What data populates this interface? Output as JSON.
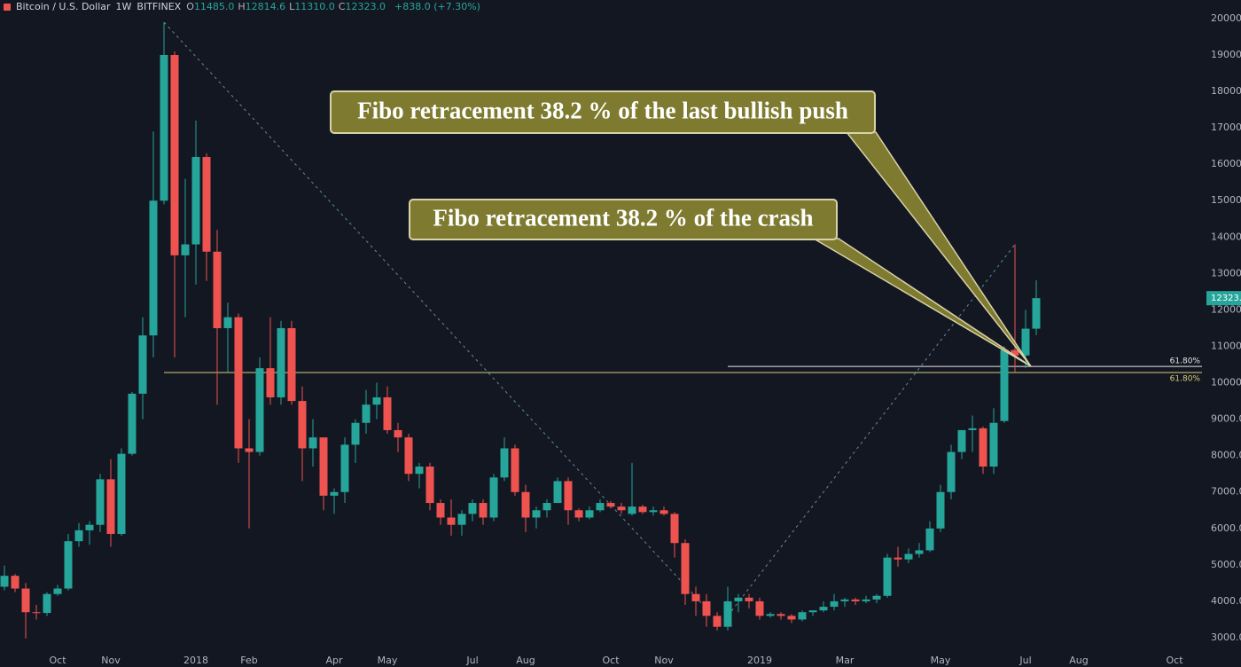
{
  "header": {
    "symbol": "Bitcoin / U.S. Dollar",
    "interval": "1W",
    "exchange": "BITFINEX",
    "ohlc": [
      {
        "label": "O",
        "value": "11485.0"
      },
      {
        "label": "H",
        "value": "12814.6"
      },
      {
        "label": "L",
        "value": "11310.0"
      },
      {
        "label": "C",
        "value": "12323.0"
      }
    ],
    "change": "+838.0 (+7.30%)"
  },
  "chart_data": {
    "type": "candlestick",
    "grid": false,
    "up_color": "#26a69a",
    "down_color": "#ef5350",
    "categories": [
      null,
      null,
      null,
      null,
      null,
      "Oct",
      null,
      null,
      null,
      null,
      "Nov",
      null,
      null,
      null,
      null,
      null,
      null,
      null,
      "2018",
      null,
      null,
      null,
      null,
      "Feb",
      null,
      null,
      null,
      null,
      null,
      null,
      null,
      "Apr",
      null,
      null,
      null,
      null,
      "May",
      null,
      null,
      null,
      null,
      null,
      null,
      null,
      "Jul",
      null,
      null,
      null,
      null,
      "Aug",
      null,
      null,
      null,
      null,
      null,
      null,
      null,
      "Oct",
      null,
      null,
      null,
      null,
      "Nov",
      null,
      null,
      null,
      null,
      null,
      null,
      null,
      null,
      "2019",
      null,
      null,
      null,
      null,
      null,
      null,
      null,
      "Mar",
      null,
      null,
      null,
      null,
      null,
      null,
      null,
      null,
      "May",
      null,
      null,
      null,
      null,
      null,
      null,
      null,
      "Jul",
      null,
      null,
      null,
      null,
      "Aug",
      null,
      null,
      null,
      null,
      null,
      null,
      null,
      null,
      "Oct",
      null
    ],
    "open": [
      4400,
      4700,
      4350,
      3700,
      3680,
      4200,
      4350,
      5650,
      5950,
      6100,
      7350,
      5850,
      8050,
      9700,
      11300,
      15000,
      19000,
      13500,
      13800,
      16200,
      13600,
      11500,
      11800,
      8200,
      8100,
      10400,
      9600,
      11500,
      9500,
      8200,
      8500,
      6900,
      7000,
      8300,
      8900,
      9400,
      9600,
      8700,
      8500,
      7500,
      7700,
      6700,
      6300,
      6100,
      6400,
      6700,
      6300,
      7400,
      8200,
      7000,
      6300,
      6500,
      6700,
      7300,
      6500,
      6300,
      6500,
      6700,
      6600,
      6400,
      6600,
      6450,
      6500,
      6400,
      5600,
      4200,
      4000,
      3600,
      3300,
      4000,
      4100,
      4000,
      3600,
      3650,
      3600,
      3500,
      3700,
      3750,
      3850,
      4000,
      4050,
      4000,
      4050,
      4150,
      5200,
      5150,
      5300,
      5400,
      6000,
      7000,
      8100,
      8700,
      8750,
      7700,
      8950,
      10900,
      10750,
      11485,
      null,
      null,
      null,
      null,
      null,
      null,
      null,
      null,
      null,
      null,
      null,
      null,
      null,
      null
    ],
    "high": [
      4980,
      4750,
      4500,
      3900,
      4250,
      4450,
      5850,
      6150,
      6200,
      7500,
      7900,
      8200,
      9750,
      11800,
      16900,
      19900,
      19100,
      15600,
      17200,
      16300,
      14200,
      12200,
      11900,
      9000,
      10700,
      11800,
      11700,
      11700,
      9900,
      9000,
      8500,
      7100,
      8500,
      9000,
      9800,
      10000,
      9900,
      8900,
      8600,
      7800,
      7800,
      6800,
      6800,
      6500,
      6800,
      6800,
      7500,
      8500,
      8300,
      7200,
      6600,
      6800,
      7400,
      7400,
      6550,
      6600,
      6800,
      6750,
      6700,
      7800,
      6650,
      6600,
      6600,
      6450,
      5700,
      4400,
      4200,
      3700,
      4400,
      4200,
      4200,
      4100,
      3700,
      3700,
      3650,
      3750,
      3750,
      4000,
      4200,
      4100,
      4100,
      4150,
      4200,
      5300,
      5500,
      5450,
      5600,
      6200,
      7200,
      8300,
      8700,
      9100,
      8800,
      9300,
      11000,
      13800,
      12000,
      12814.6,
      null,
      null,
      null,
      null,
      null,
      null,
      null,
      null,
      null,
      null,
      null,
      null,
      null,
      null
    ],
    "low": [
      4300,
      4250,
      2980,
      3500,
      3600,
      4150,
      4300,
      5500,
      5550,
      5900,
      5500,
      5800,
      8000,
      9000,
      10700,
      14900,
      10700,
      11800,
      12700,
      12800,
      9400,
      10300,
      7800,
      6000,
      8000,
      9400,
      9400,
      9400,
      7300,
      7700,
      6500,
      6400,
      6700,
      7800,
      8600,
      9000,
      8600,
      8100,
      7300,
      7100,
      6500,
      6100,
      5800,
      5800,
      6200,
      6100,
      6200,
      7300,
      6900,
      5900,
      6000,
      6300,
      6700,
      6100,
      6200,
      6250,
      6450,
      6550,
      6400,
      6350,
      6400,
      6350,
      6350,
      5200,
      3900,
      3600,
      3300,
      3200,
      3200,
      3700,
      3800,
      3500,
      3550,
      3500,
      3400,
      3450,
      3600,
      3700,
      3750,
      3850,
      3900,
      3950,
      3950,
      4100,
      4950,
      5050,
      5200,
      5350,
      5900,
      6800,
      7900,
      8100,
      7500,
      7500,
      8900,
      10300,
      10400,
      11310,
      null,
      null,
      null,
      null,
      null,
      null,
      null,
      null,
      null,
      null,
      null,
      null,
      null,
      null
    ],
    "close": [
      4700,
      4350,
      3700,
      3680,
      4200,
      4350,
      5650,
      5950,
      6100,
      7350,
      5850,
      8050,
      9700,
      11300,
      15000,
      19000,
      13500,
      13800,
      16200,
      13600,
      11500,
      11800,
      8200,
      8100,
      10400,
      9600,
      11500,
      9500,
      8200,
      8500,
      6900,
      7000,
      8300,
      8900,
      9400,
      9600,
      8700,
      8500,
      7500,
      7700,
      6700,
      6300,
      6100,
      6400,
      6700,
      6300,
      7400,
      8200,
      7000,
      6300,
      6500,
      6700,
      7300,
      6500,
      6300,
      6500,
      6700,
      6600,
      6500,
      6600,
      6450,
      6500,
      6400,
      5600,
      4200,
      4000,
      3600,
      3300,
      4000,
      4100,
      4000,
      3600,
      3650,
      3600,
      3500,
      3700,
      3750,
      3850,
      4000,
      4050,
      4000,
      4050,
      4150,
      5200,
      5150,
      5300,
      5400,
      6000,
      7000,
      8100,
      8700,
      8750,
      7700,
      8900,
      10900,
      10750,
      11485,
      12323,
      null,
      null,
      null,
      null,
      null,
      null,
      null,
      null,
      null,
      null,
      null,
      null,
      null,
      null
    ],
    "ylim": [
      2610,
      20510
    ],
    "yticks": [
      {
        "value": 3000,
        "label": "3000.0"
      },
      {
        "value": 4000,
        "label": "4000.0"
      },
      {
        "value": 5000,
        "label": "5000.0"
      },
      {
        "value": 6000,
        "label": "6000.0"
      },
      {
        "value": 7000,
        "label": "7000.0"
      },
      {
        "value": 8000,
        "label": "8000.0"
      },
      {
        "value": 9000,
        "label": "9000.0"
      },
      {
        "value": 10000,
        "label": "10000.0"
      },
      {
        "value": 11000,
        "label": "11000.0"
      },
      {
        "value": 12000,
        "label": "12000.0"
      },
      {
        "value": 13000,
        "label": "13000.0"
      },
      {
        "value": 14000,
        "label": "14000.0"
      },
      {
        "value": 15000,
        "label": "15000.0"
      },
      {
        "value": 16000,
        "label": "16000.0"
      },
      {
        "value": 17000,
        "label": "17000.0"
      },
      {
        "value": 18000,
        "label": "18000.0"
      },
      {
        "value": 19000,
        "label": "19000.0"
      },
      {
        "value": 20000,
        "label": "20000.0"
      }
    ],
    "last_price": {
      "value": 12323,
      "label": "12323.0",
      "color": "#26a69a"
    },
    "fib_retracements": [
      {
        "start": {
          "x": 15,
          "y": 19900
        },
        "end": {
          "x": 66,
          "y": 3800
        },
        "level": 10280,
        "label": "61.80%",
        "color": "#d9cc7a"
      },
      {
        "start": {
          "x": 68,
          "y": 3600
        },
        "end": {
          "x": 95,
          "y": 13800
        },
        "level": 10450,
        "label": "61.80%",
        "color": "#e6e6e6"
      }
    ],
    "annotations": [
      {
        "text": "Fibo retracement 38.2 % of the last bullish push"
      },
      {
        "text": "Fibo retracement 38.2 % of the crash"
      }
    ]
  }
}
